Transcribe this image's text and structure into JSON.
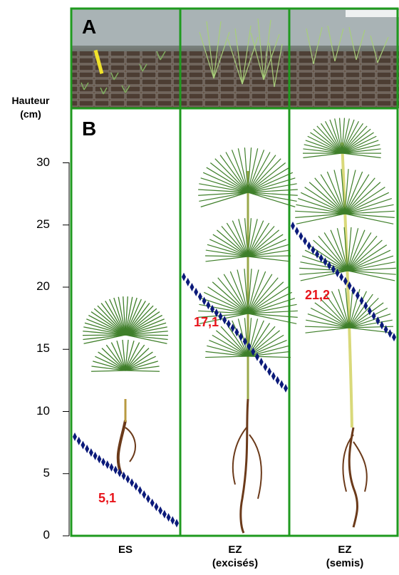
{
  "figure": {
    "panel_a_label": "A",
    "panel_b_label": "B",
    "y_axis_title_line1": "Hauteur",
    "y_axis_title_line2": "(cm)"
  },
  "colors": {
    "panel_border": "#1f9a1f",
    "value_label": "#e8141b",
    "height_marker": "#0b1a7a",
    "needle_green": "#3f7f2a",
    "root_brown": "#6b3a1a"
  },
  "axis": {
    "ticks": [
      "0",
      "5",
      "10",
      "15",
      "20",
      "25",
      "30"
    ],
    "ylim": [
      0,
      30
    ]
  },
  "groups": [
    {
      "label_line1": "ES",
      "label_line2": "",
      "value": 5.1,
      "value_label": "5,1"
    },
    {
      "label_line1": "EZ",
      "label_line2": "(excisés)",
      "value": 17.1,
      "value_label": "17,1"
    },
    {
      "label_line1": "EZ",
      "label_line2": "(semis)",
      "value": 21.2,
      "value_label": "21,2"
    }
  ]
}
